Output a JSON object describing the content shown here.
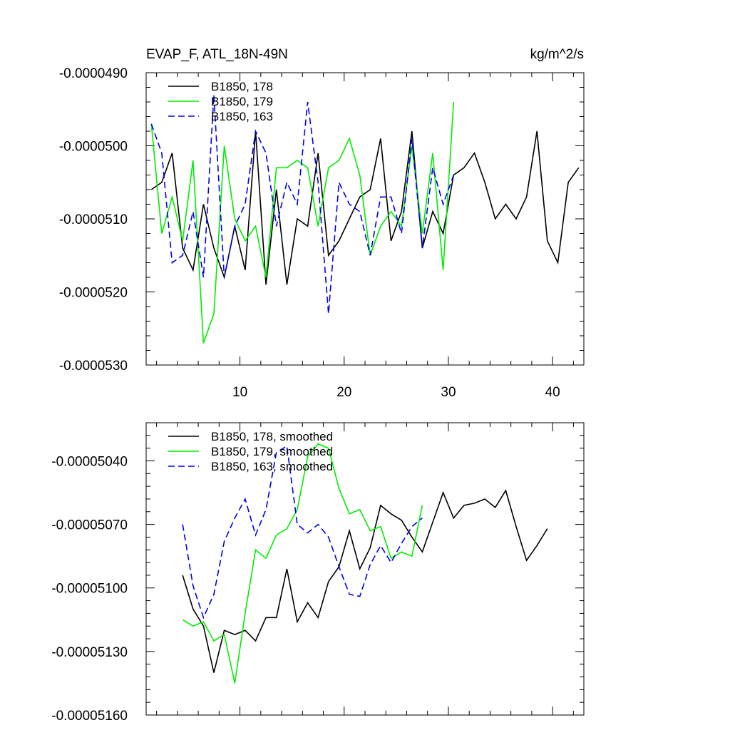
{
  "chart_data": [
    {
      "type": "line",
      "title": "EVAP_F, ATL_18N-49N",
      "units": "kg/m^2/s",
      "xlim": [
        1,
        43
      ],
      "ylim": [
        -5.3e-05,
        -4.9e-05
      ],
      "x_ticks": [
        10,
        20,
        30,
        40
      ],
      "x_tick_labels": [
        "10",
        "20",
        "30",
        "40"
      ],
      "y_ticks": [
        -4.9e-05,
        -5e-05,
        -5.1e-05,
        -5.2e-05,
        -5.3e-05
      ],
      "y_tick_labels": [
        "-0.0000490",
        "-0.0000500",
        "-0.0000510",
        "-0.0000520",
        "-0.0000530"
      ],
      "legend_position": "top-left",
      "series": [
        {
          "name": "B1850, 178",
          "color": "#000000",
          "dash": "solid",
          "x": [
            1.5,
            2.5,
            3.5,
            4.5,
            5.5,
            6.5,
            7.5,
            8.5,
            9.5,
            10.5,
            11.5,
            12.5,
            13.5,
            14.5,
            15.5,
            16.5,
            17.5,
            18.5,
            19.5,
            20.5,
            21.5,
            22.5,
            23.5,
            24.5,
            25.5,
            26.5,
            27.5,
            28.5,
            29.5,
            30.5,
            31.5,
            32.5,
            33.5,
            34.5,
            35.5,
            36.5,
            37.5,
            38.5,
            39.5,
            40.5,
            41.5,
            42.5
          ],
          "values": [
            -5.06e-05,
            -5.05e-05,
            -5.01e-05,
            -5.14e-05,
            -5.17e-05,
            -5.08e-05,
            -5.14e-05,
            -5.18e-05,
            -5.11e-05,
            -5.17e-05,
            -4.98e-05,
            -5.19e-05,
            -5.06e-05,
            -5.19e-05,
            -5.1e-05,
            -5.11e-05,
            -5.01e-05,
            -5.15e-05,
            -5.13e-05,
            -5.1e-05,
            -5.07e-05,
            -5.06e-05,
            -4.99e-05,
            -5.13e-05,
            -5.09e-05,
            -4.98e-05,
            -5.14e-05,
            -5.09e-05,
            -5.12e-05,
            -5.04e-05,
            -5.03e-05,
            -5.01e-05,
            -5.05e-05,
            -5.1e-05,
            -5.08e-05,
            -5.1e-05,
            -5.07e-05,
            -4.98e-05,
            -5.13e-05,
            -5.16e-05,
            -5.05e-05,
            -5.03e-05
          ]
        },
        {
          "name": "B1850, 179",
          "color": "#00ee00",
          "dash": "solid",
          "x": [
            1.5,
            2.5,
            3.5,
            4.5,
            5.5,
            6.5,
            7.5,
            8.5,
            9.5,
            10.5,
            11.5,
            12.5,
            13.5,
            14.5,
            15.5,
            16.5,
            17.5,
            18.5,
            19.5,
            20.5,
            21.5,
            22.5,
            23.5,
            24.5,
            25.5,
            26.5,
            27.5,
            28.5,
            29.5,
            30.5
          ],
          "values": [
            -4.97e-05,
            -5.12e-05,
            -5.07e-05,
            -5.13e-05,
            -5.02e-05,
            -5.27e-05,
            -5.23e-05,
            -5e-05,
            -5.1e-05,
            -5.13e-05,
            -5.11e-05,
            -5.18e-05,
            -5.03e-05,
            -5.03e-05,
            -5.02e-05,
            -5.03e-05,
            -5.11e-05,
            -5.03e-05,
            -5.02e-05,
            -4.99e-05,
            -5.04e-05,
            -5.15e-05,
            -5.11e-05,
            -5.09e-05,
            -5.11e-05,
            -5e-05,
            -5.12e-05,
            -5.01e-05,
            -5.17e-05,
            -4.94e-05
          ]
        },
        {
          "name": "B1850, 163",
          "color": "#0000ee",
          "dash": "dashed",
          "x": [
            1.5,
            2.5,
            3.5,
            4.5,
            5.5,
            6.5,
            7.5,
            8.5,
            9.5,
            10.5,
            11.5,
            12.5,
            13.5,
            14.5,
            15.5,
            16.5,
            17.5,
            18.5,
            19.5,
            20.5,
            21.5,
            22.5,
            23.5,
            24.5,
            25.5,
            26.5,
            27.5,
            28.5,
            29.5,
            30.5
          ],
          "values": [
            -4.97e-05,
            -5.01e-05,
            -5.16e-05,
            -5.15e-05,
            -5.09e-05,
            -5.18e-05,
            -4.93e-05,
            -5.18e-05,
            -5.11e-05,
            -5.08e-05,
            -4.98e-05,
            -5.01e-05,
            -5.11e-05,
            -5.05e-05,
            -5.08e-05,
            -4.94e-05,
            -5.05e-05,
            -5.23e-05,
            -5.05e-05,
            -5.08e-05,
            -5.09e-05,
            -5.15e-05,
            -5.07e-05,
            -5.07e-05,
            -5.12e-05,
            -4.99e-05,
            -5.14e-05,
            -5.03e-05,
            -5.08e-05,
            -5.04e-05
          ]
        }
      ]
    },
    {
      "type": "line",
      "xlim": [
        1,
        43
      ],
      "ylim": [
        -5.16e-05,
        -5.022e-05
      ],
      "x_ticks": [
        10,
        20,
        30,
        40
      ],
      "y_ticks": [
        -5.04e-05,
        -5.07e-05,
        -5.1e-05,
        -5.13e-05,
        -5.16e-05
      ],
      "y_tick_labels": [
        "-0.00005040",
        "-0.00005070",
        "-0.00005100",
        "-0.00005130",
        "-0.00005160"
      ],
      "legend_position": "top-left",
      "series": [
        {
          "name": "B1850, 178, smoothed",
          "color": "#000000",
          "dash": "solid",
          "x": [
            4.5,
            5.5,
            6.5,
            7.5,
            8.5,
            9.5,
            10.5,
            11.5,
            12.5,
            13.5,
            14.5,
            15.5,
            16.5,
            17.5,
            18.5,
            19.5,
            20.5,
            21.5,
            22.5,
            23.5,
            24.5,
            25.5,
            26.5,
            27.5,
            28.5,
            29.5,
            30.5,
            31.5,
            32.5,
            33.5,
            34.5,
            35.5,
            36.5,
            37.5,
            38.5,
            39.5
          ],
          "values": [
            -5.094e-05,
            -5.11e-05,
            -5.118e-05,
            -5.14e-05,
            -5.12e-05,
            -5.122e-05,
            -5.12e-05,
            -5.125e-05,
            -5.114e-05,
            -5.114e-05,
            -5.091e-05,
            -5.116e-05,
            -5.107e-05,
            -5.114e-05,
            -5.097e-05,
            -5.09e-05,
            -5.073e-05,
            -5.091e-05,
            -5.081e-05,
            -5.061e-05,
            -5.065e-05,
            -5.068e-05,
            -5.076e-05,
            -5.083e-05,
            -5.069e-05,
            -5.055e-05,
            -5.067e-05,
            -5.061e-05,
            -5.06e-05,
            -5.058e-05,
            -5.062e-05,
            -5.054e-05,
            -5.071e-05,
            -5.087e-05,
            -5.08e-05,
            -5.072e-05
          ]
        },
        {
          "name": "B1850, 179, smoothed",
          "color": "#00ee00",
          "dash": "solid",
          "x": [
            4.5,
            5.5,
            6.5,
            7.5,
            8.5,
            9.5,
            10.5,
            11.5,
            12.5,
            13.5,
            14.5,
            15.5,
            16.5,
            17.5,
            18.5,
            19.5,
            20.5,
            21.5,
            22.5,
            23.5,
            24.5,
            25.5,
            26.5,
            27.5
          ],
          "values": [
            -5.115e-05,
            -5.118e-05,
            -5.116e-05,
            -5.125e-05,
            -5.122e-05,
            -5.145e-05,
            -5.112e-05,
            -5.082e-05,
            -5.086e-05,
            -5.075e-05,
            -5.072e-05,
            -5.063e-05,
            -5.038e-05,
            -5.032e-05,
            -5.034e-05,
            -5.053e-05,
            -5.065e-05,
            -5.063e-05,
            -5.073e-05,
            -5.071e-05,
            -5.086e-05,
            -5.083e-05,
            -5.085e-05,
            -5.061e-05
          ]
        },
        {
          "name": "B1850, 163, smoothed",
          "color": "#0000ee",
          "dash": "dashed",
          "x": [
            4.5,
            5.5,
            6.5,
            7.5,
            8.5,
            9.5,
            10.5,
            11.5,
            12.5,
            13.5,
            14.5,
            15.5,
            16.5,
            17.5,
            18.5,
            19.5,
            20.5,
            21.5,
            22.5,
            23.5,
            24.5,
            25.5,
            26.5,
            27.5
          ],
          "values": [
            -5.07e-05,
            -5.099e-05,
            -5.114e-05,
            -5.103e-05,
            -5.078e-05,
            -5.067e-05,
            -5.058e-05,
            -5.075e-05,
            -5.063e-05,
            -5.036e-05,
            -5.033e-05,
            -5.07e-05,
            -5.074e-05,
            -5.07e-05,
            -5.076e-05,
            -5.09e-05,
            -5.103e-05,
            -5.104e-05,
            -5.089e-05,
            -5.08e-05,
            -5.088e-05,
            -5.079e-05,
            -5.071e-05,
            -5.067e-05
          ]
        }
      ]
    }
  ]
}
